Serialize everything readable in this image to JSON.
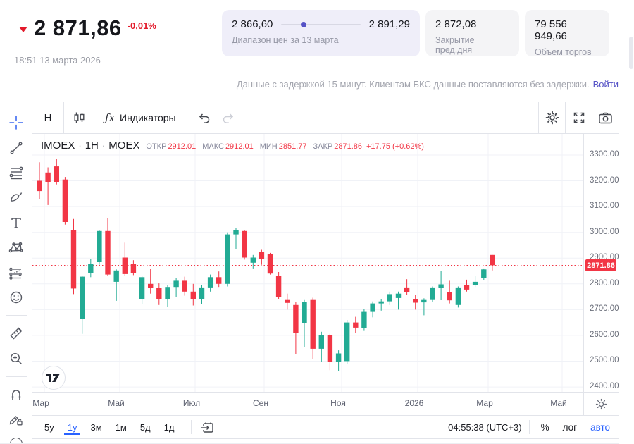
{
  "quote_header": {
    "price": "2 871,86",
    "change": "-0,01%",
    "timestamp": "18:51 13 марта 2026",
    "range_card": {
      "low": "2 866,60",
      "high": "2 891,29",
      "label": "Диапазон цен за 13 марта",
      "dot_percent": 25
    },
    "prev_close_card": {
      "value": "2 872,08",
      "label": "Закрытие пред.дня"
    },
    "volume_card": {
      "value": "79 556 949,66",
      "label": "Объем торгов"
    },
    "delay_notice": "Данные с задержкой 15 минут. Клиентам БКС данные поставляются без задержки.",
    "login_link": "Войти"
  },
  "chart_toolbar": {
    "interval_label": "Н",
    "fx_label": "ƒx",
    "indicators_label": "Индикаторы",
    "icons": [
      "candlestick-style-icon",
      "undo-icon",
      "redo-icon",
      "settings-gear-icon",
      "fullscreen-icon",
      "camera-icon"
    ]
  },
  "left_toolbar": {
    "tools": [
      "crosshair",
      "trend-line",
      "fib-retracement",
      "brush",
      "text",
      "xabcd-pattern",
      "forecast",
      "emoji",
      "ruler",
      "zoom-in",
      "magnet",
      "lock-drawings",
      "partial-hidden-tool"
    ]
  },
  "legend": {
    "symbol": "IMOEX",
    "separator": "·",
    "interval": "1H",
    "exchange": "MOEX",
    "ohlc": [
      {
        "label": "ОТКР",
        "value": "2912.01"
      },
      {
        "label": "МАКС",
        "value": "2912.01"
      },
      {
        "label": "МИН",
        "value": "2851.77"
      },
      {
        "label": "ЗАКР",
        "value": "2871.86"
      }
    ],
    "change": "+17.75 (+0.62%)"
  },
  "chart_data": {
    "type": "candlestick",
    "title": "IMOEX 1H MOEX",
    "xlabel": "",
    "ylabel": "",
    "grid": true,
    "ylim": [
      2381,
      3382
    ],
    "y_ticks": [
      3300,
      3200,
      3100,
      3000,
      2900,
      2800,
      2700,
      2600,
      2500,
      2400
    ],
    "x_ticks": [
      {
        "label": "Мар",
        "x": 12
      },
      {
        "label": "Май",
        "x": 119
      },
      {
        "label": "Июл",
        "x": 226
      },
      {
        "label": "Сен",
        "x": 324
      },
      {
        "label": "Ноя",
        "x": 434
      },
      {
        "label": "2026",
        "x": 542
      },
      {
        "label": "Мар",
        "x": 642
      },
      {
        "label": "Май",
        "x": 747
      }
    ],
    "candle_x0": 10,
    "candle_step": 12.13,
    "body_width": 7.4,
    "price_line": 2871.86,
    "price_tag": "2871.86",
    "candles": [
      [
        3200,
        3272,
        3128,
        3160
      ],
      [
        3232,
        3252,
        3106,
        3196
      ],
      [
        3256,
        3286,
        3186,
        3196
      ],
      [
        3205,
        3215,
        3030,
        3040
      ],
      [
        3010,
        3052,
        2760,
        2782
      ],
      [
        2663,
        2832,
        2606,
        2828
      ],
      [
        2843,
        2896,
        2826,
        2876
      ],
      [
        2884,
        3010,
        2874,
        3005
      ],
      [
        3005,
        3056,
        2832,
        2836
      ],
      [
        2808,
        2856,
        2734,
        2852
      ],
      [
        2902,
        2960,
        2832,
        2838
      ],
      [
        2878,
        2892,
        2834,
        2842
      ],
      [
        2742,
        2832,
        2722,
        2826
      ],
      [
        2800,
        2858,
        2762,
        2784
      ],
      [
        2784,
        2802,
        2718,
        2742
      ],
      [
        2742,
        2796,
        2712,
        2788
      ],
      [
        2788,
        2824,
        2748,
        2812
      ],
      [
        2812,
        2828,
        2754,
        2770
      ],
      [
        2770,
        2800,
        2716,
        2742
      ],
      [
        2742,
        2794,
        2722,
        2786
      ],
      [
        2786,
        2836,
        2770,
        2826
      ],
      [
        2826,
        2848,
        2788,
        2800
      ],
      [
        2800,
        3000,
        2790,
        2992
      ],
      [
        2992,
        3018,
        2934,
        3008
      ],
      [
        3005,
        3008,
        2894,
        2902
      ],
      [
        2882,
        2912,
        2860,
        2902
      ],
      [
        2925,
        2932,
        2874,
        2898
      ],
      [
        2916,
        2920,
        2836,
        2840
      ],
      [
        2830,
        2846,
        2742,
        2748
      ],
      [
        2740,
        2762,
        2700,
        2726
      ],
      [
        2718,
        2730,
        2528,
        2608
      ],
      [
        2648,
        2740,
        2556,
        2730
      ],
      [
        2740,
        2746,
        2508,
        2548
      ],
      [
        2548,
        2614,
        2498,
        2602
      ],
      [
        2602,
        2606,
        2465,
        2496
      ],
      [
        2496,
        2542,
        2462,
        2530
      ],
      [
        2500,
        2660,
        2490,
        2650
      ],
      [
        2650,
        2672,
        2610,
        2630
      ],
      [
        2630,
        2702,
        2620,
        2694
      ],
      [
        2694,
        2732,
        2670,
        2724
      ],
      [
        2724,
        2742,
        2696,
        2732
      ],
      [
        2732,
        2770,
        2718,
        2760
      ],
      [
        2745,
        2770,
        2700,
        2762
      ],
      [
        2786,
        2818,
        2758,
        2768
      ],
      [
        2742,
        2756,
        2700,
        2727
      ],
      [
        2728,
        2744,
        2678,
        2740
      ],
      [
        2740,
        2790,
        2730,
        2786
      ],
      [
        2784,
        2850,
        2738,
        2798
      ],
      [
        2768,
        2812,
        2724,
        2736
      ],
      [
        2718,
        2790,
        2708,
        2786
      ],
      [
        2796,
        2816,
        2770,
        2778
      ],
      [
        2796,
        2832,
        2788,
        2808
      ],
      [
        2822,
        2860,
        2814,
        2856
      ],
      [
        2912,
        2912,
        2852,
        2872
      ]
    ]
  },
  "bottom_bar": {
    "ranges": [
      "5у",
      "1у",
      "3м",
      "1м",
      "5д",
      "1д"
    ],
    "active_range": "1у",
    "goto_date_icon": "calendar-goto-icon",
    "clock": "04:55:38 (UTC+3)",
    "percent_label": "%",
    "log_label": "лог",
    "auto_label": "авто"
  },
  "colors": {
    "up": "#22ab94",
    "down": "#f23645",
    "accent_blue": "#2962ff",
    "link_purple": "#5552c6",
    "brand_red": "#e31a2b",
    "grid": "#f0f2f7"
  }
}
